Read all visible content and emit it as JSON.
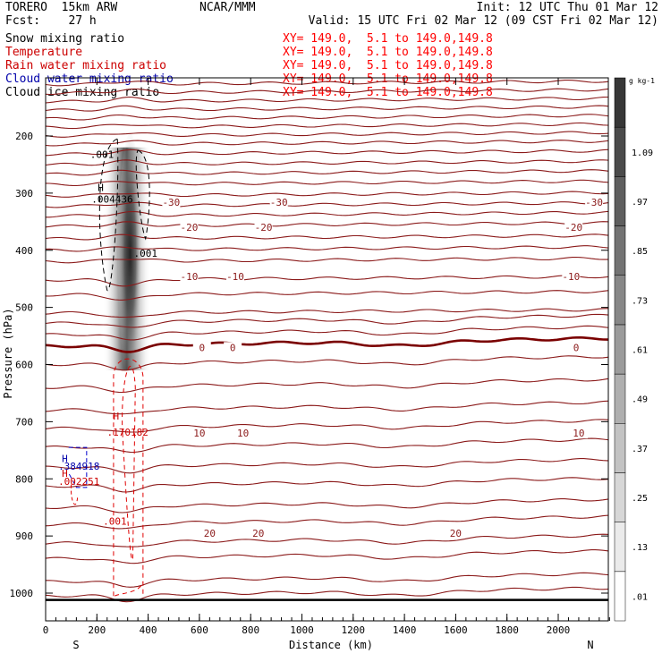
{
  "header": {
    "left1": "TORERO  15km ARW",
    "center1": "NCAR/MMM",
    "right1": "Init: 12 UTC Thu 01 Mar 12",
    "left2": "Fcst:    27 h",
    "right2": "Valid: 15 UTC Fri 02 Mar 12 (09 CST Fri 02 Mar 12)"
  },
  "fields": [
    {
      "label": "Snow mixing ratio",
      "color": "#000000",
      "xy": "XY= 149.0,  5.1 to 149.0,149.8"
    },
    {
      "label": "Temperature",
      "color": "#cc0000",
      "xy": "XY= 149.0,  5.1 to 149.0,149.8"
    },
    {
      "label": "Rain water mixing ratio",
      "color": "#cc0000",
      "xy": "XY= 149.0,  5.1 to 149.0,149.8"
    },
    {
      "label": "Cloud water mixing ratio",
      "color": "#0000aa",
      "xy": "XY= 149.0,  5.1 to 149.0,149.8"
    },
    {
      "label": "Cloud ice mixing ratio",
      "color": "#000000",
      "xy": "XY= 149.0,  5.1 to 149.0,149.8"
    }
  ],
  "chart_data": {
    "type": "contour-cross-section",
    "xlabel": "Distance (km)",
    "ylabel": "Pressure (hPa)",
    "x_ticks": [
      0,
      200,
      400,
      600,
      800,
      1000,
      1200,
      1400,
      1600,
      1800,
      2000
    ],
    "y_ticks": [
      200,
      300,
      400,
      500,
      600,
      700,
      800,
      900,
      1000
    ],
    "xlim": [
      0,
      2210
    ],
    "ylim_pressure": [
      1050,
      100
    ],
    "end_labels": {
      "left": "S",
      "right": "N"
    },
    "colorbar": {
      "unit": "g kg-1",
      "labels": [
        ".01",
        ".13",
        ".25",
        ".37",
        ".49",
        ".61",
        ".73",
        ".85",
        ".97",
        "1.09"
      ]
    },
    "temperature_contours": [
      {
        "value": -30,
        "labels": [
          {
            "text": "-30",
            "x": 490
          },
          {
            "text": "-30",
            "x": 910
          },
          {
            "text": "-30",
            "x": 2140
          }
        ]
      },
      {
        "value": -20,
        "labels": [
          {
            "text": "-20",
            "x": 560
          },
          {
            "text": "-20",
            "x": 850
          },
          {
            "text": "-20",
            "x": 2060
          }
        ]
      },
      {
        "value": -10,
        "labels": [
          {
            "text": "-10",
            "x": 560
          },
          {
            "text": "-10",
            "x": 740
          },
          {
            "text": "-10",
            "x": 2050
          }
        ]
      },
      {
        "value": 0,
        "labels": [
          {
            "text": "0",
            "x": 610
          },
          {
            "text": "0",
            "x": 730
          },
          {
            "text": "0",
            "x": 2070
          }
        ]
      },
      {
        "value": 10,
        "labels": [
          {
            "text": "10",
            "x": 600
          },
          {
            "text": "10",
            "x": 770
          },
          {
            "text": "10",
            "x": 2080
          }
        ]
      },
      {
        "value": 20,
        "labels": [
          {
            "text": "20",
            "x": 640
          },
          {
            "text": "20",
            "x": 830
          },
          {
            "text": "20",
            "x": 1600
          }
        ]
      }
    ],
    "annotations": [
      {
        "text": ".001",
        "color": "#000000",
        "x": 220,
        "p": 232
      },
      {
        "text": "H",
        "color": "#000000",
        "x": 215,
        "p": 290
      },
      {
        "text": ".004436",
        "color": "#000000",
        "x": 260,
        "p": 310
      },
      {
        "text": ".001",
        "color": "#000000",
        "x": 390,
        "p": 405
      },
      {
        "text": "H",
        "color": "#cc0000",
        "x": 275,
        "p": 690
      },
      {
        "text": ".170182",
        "color": "#cc0000",
        "x": 320,
        "p": 718
      },
      {
        "text": ".001",
        "color": "#cc0000",
        "x": 270,
        "p": 874
      },
      {
        "text": "H",
        "color": "#0000aa",
        "x": 75,
        "p": 764
      },
      {
        "text": ".384918",
        "color": "#0000aa",
        "x": 130,
        "p": 778
      },
      {
        "text": "H",
        "color": "#cc0000",
        "x": 75,
        "p": 790
      },
      {
        "text": ".002251",
        "color": "#cc0000",
        "x": 130,
        "p": 804
      }
    ]
  }
}
